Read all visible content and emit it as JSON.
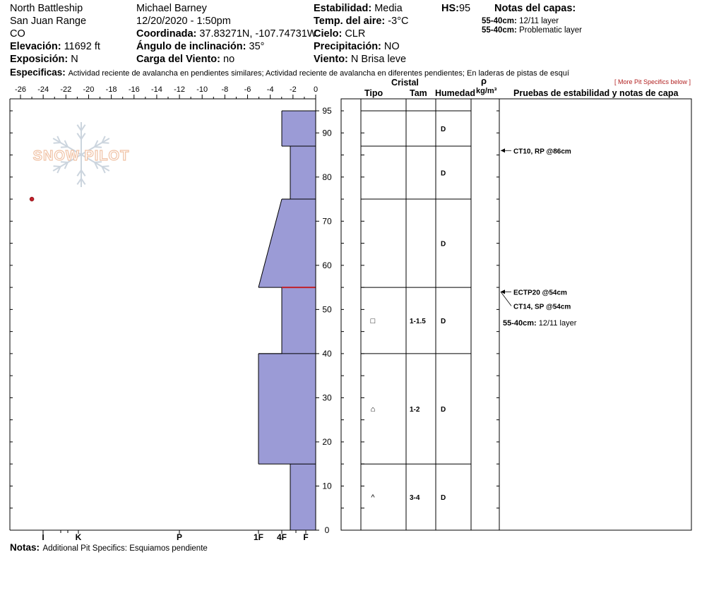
{
  "header": {
    "location": "North Battleship",
    "range": "San Juan Range",
    "state": "CO",
    "elevation_label": "Elevación:",
    "elevation_value": "11692 ft",
    "aspect_label": "Exposición:",
    "aspect_value": "N",
    "observer": "Michael Barney",
    "datetime": "12/20/2020 - 1:50pm",
    "coord_label": "Coordinada:",
    "coord_value": "37.83271N, -107.74731W",
    "slope_label": "Ángulo de inclinación:",
    "slope_value": "35°",
    "wind_load_label": "Carga del Viento:",
    "wind_load_value": "no",
    "stability_label": "Estabilidad:",
    "stability_value": "Media",
    "air_temp_label": "Temp. del aire:",
    "air_temp_value": "-3°C",
    "sky_label": "Cielo:",
    "sky_value": "CLR",
    "precip_label": "Precipitación:",
    "precip_value": "NO",
    "wind_label": "Viento:",
    "wind_value": "N Brisa leve",
    "hs_label": "HS:",
    "hs_value": "95",
    "layer_notes_title": "Notas del capas:",
    "layer_notes": [
      {
        "range": "55-40cm:",
        "text": "12/11 layer"
      },
      {
        "range": "55-40cm:",
        "text": "Problematic layer"
      }
    ],
    "specifics_label": "Especificas:",
    "specifics_value": "Actividad reciente de avalancha en pendientes similares; Actividad reciente de avalancha en diferentes pendientes; En laderas de pistas de esquí",
    "more_specifics": "[ More Pit Specifics below ]"
  },
  "logo_text": "SNOW PILOT",
  "table": {
    "crystal_header": "Cristal",
    "rho_header": "ρ",
    "type_header": "Tipo",
    "size_header": "Tam",
    "moisture_header": "Humedad",
    "density_unit": "kg/m³",
    "tests_header": "Pruebas de estabilidad y notas de capa",
    "layers": [
      {
        "top": 95,
        "bottom": 87,
        "type": "",
        "size": "",
        "moisture": "D"
      },
      {
        "top": 87,
        "bottom": 75,
        "type": "",
        "size": "",
        "moisture": "D"
      },
      {
        "top": 75,
        "bottom": 55,
        "type": "",
        "size": "",
        "moisture": "D"
      },
      {
        "top": 55,
        "bottom": 40,
        "type": "□",
        "size": "1-1.5",
        "moisture": "D"
      },
      {
        "top": 40,
        "bottom": 15,
        "type": "⌂",
        "size": "1-2",
        "moisture": "D"
      },
      {
        "top": 15,
        "bottom": 0,
        "type": "^",
        "size": "3-4",
        "moisture": "D"
      }
    ],
    "tests": [
      {
        "depth": 86,
        "text": "CT10, RP @86cm"
      },
      {
        "depth": 54,
        "text": "ECTP20 @54cm"
      },
      {
        "depth": 54,
        "text": "CT14, SP @54cm"
      }
    ],
    "layer_note_range": "55-40cm:",
    "layer_note_text": "12/11 layer"
  },
  "notes_label": "Notas:",
  "notes_value": "Additional Pit Specifics: Esquiamos pendiente",
  "chart_data": {
    "type": "area",
    "title": "",
    "temperature_axis": {
      "ticks": [
        -26,
        -24,
        -22,
        -20,
        -18,
        -16,
        -14,
        -12,
        -10,
        -8,
        -6,
        -4,
        -2,
        0
      ],
      "range": [
        -27,
        0
      ]
    },
    "height_axis": {
      "ticks": [
        0,
        10,
        20,
        30,
        40,
        50,
        60,
        70,
        80,
        90,
        95
      ],
      "range": [
        0,
        95
      ]
    },
    "hardness_axis": {
      "labels": [
        "I",
        "K",
        "P",
        "1F",
        "4F",
        "F"
      ]
    },
    "hardness_profile": [
      {
        "top": 95,
        "bottom": 87,
        "hardness": "4F"
      },
      {
        "top": 87,
        "bottom": 75,
        "hardness": "F+"
      },
      {
        "top": 75,
        "bottom": 55,
        "hardness": "4F",
        "bottom_hardness": "1F"
      },
      {
        "top": 55,
        "bottom": 40,
        "hardness": "4F"
      },
      {
        "top": 40,
        "bottom": 15,
        "hardness": "1F"
      },
      {
        "top": 15,
        "bottom": 0,
        "hardness": "F+"
      }
    ],
    "weak_layer_depth": 55,
    "temperature_points": [
      {
        "temp": -25,
        "height": 75
      }
    ],
    "colors": {
      "profile_fill": "#9b9bd6",
      "weak_layer": "#c0202a",
      "temp_point": "#c0202a"
    }
  }
}
